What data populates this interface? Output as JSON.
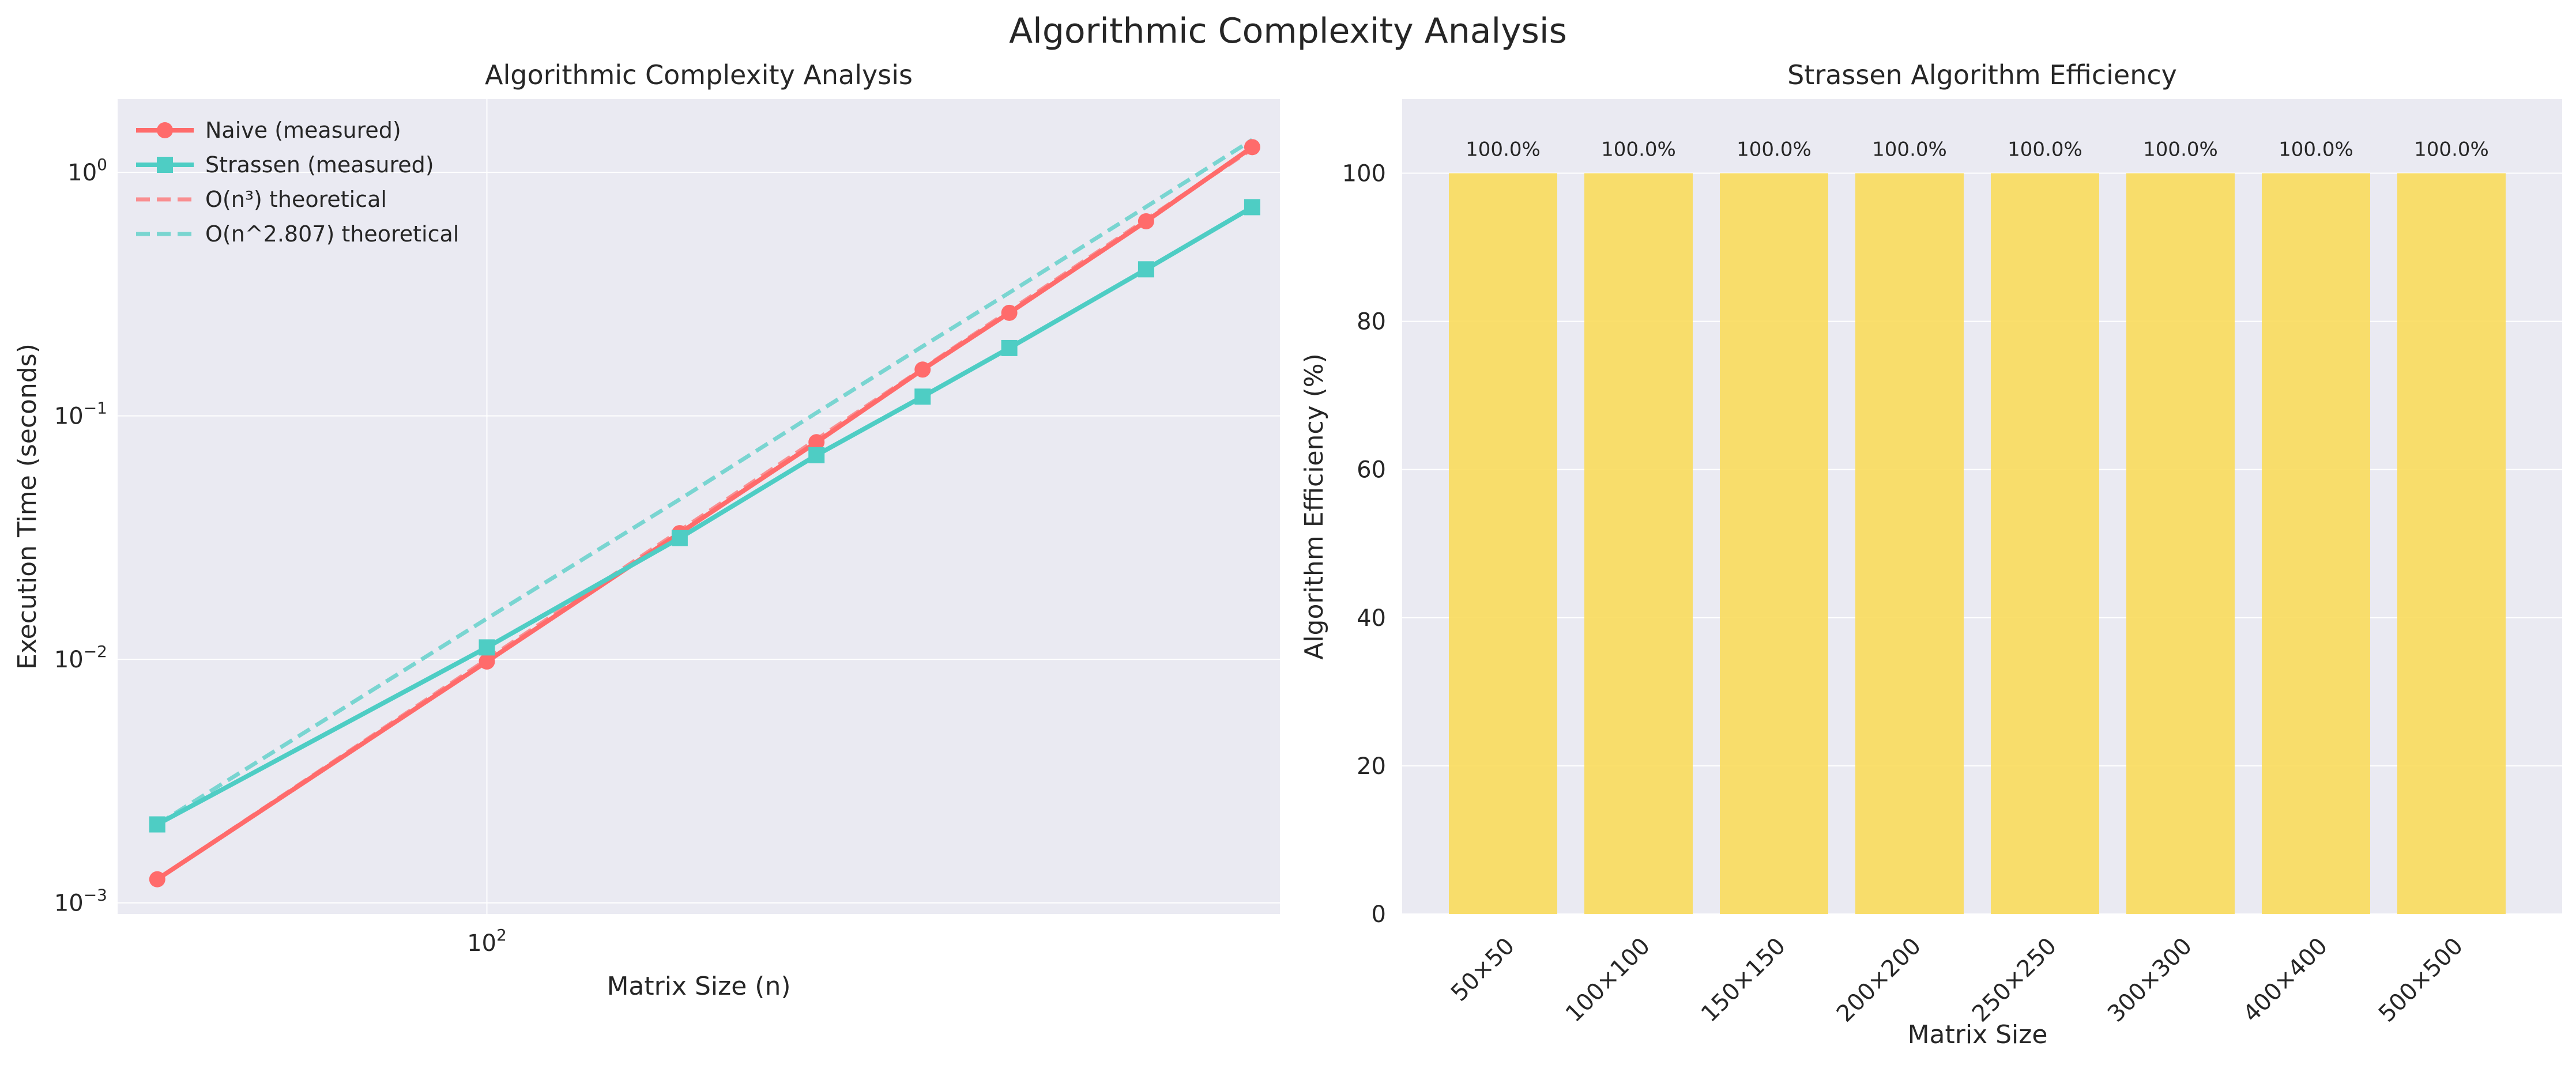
{
  "suptitle": "Algorithmic Complexity Analysis",
  "chart_data": [
    {
      "type": "line",
      "title": "Algorithmic Complexity Analysis",
      "xlabel": "Matrix Size (n)",
      "ylabel": "Execution Time (seconds)",
      "xscale": "log",
      "yscale": "log",
      "xlim": [
        46,
        530
      ],
      "ylim": [
        0.0009,
        2.0
      ],
      "x_ticks": [
        {
          "value": 100,
          "base": "10",
          "exp": "2"
        }
      ],
      "y_ticks": [
        {
          "value": 0.001,
          "base": "10",
          "exp": "−3"
        },
        {
          "value": 0.01,
          "base": "10",
          "exp": "−2"
        },
        {
          "value": 0.1,
          "base": "10",
          "exp": "−1"
        },
        {
          "value": 1,
          "base": "10",
          "exp": "0"
        }
      ],
      "grid": true,
      "legend_position": "upper-left",
      "series": [
        {
          "name": "Naive (measured)",
          "color": "#ff6b6b",
          "style": "solid",
          "marker": "circle",
          "x": [
            50,
            100,
            150,
            200,
            250,
            300,
            400,
            500
          ],
          "y": [
            0.00125,
            0.0098,
            0.033,
            0.078,
            0.155,
            0.265,
            0.63,
            1.27
          ]
        },
        {
          "name": "Strassen (measured)",
          "color": "#4ecdc4",
          "style": "solid",
          "marker": "square",
          "x": [
            50,
            100,
            150,
            200,
            250,
            300,
            400,
            500
          ],
          "y": [
            0.0021,
            0.0112,
            0.0315,
            0.069,
            0.12,
            0.19,
            0.4,
            0.72
          ]
        },
        {
          "name": "O(n³) theoretical",
          "color": "#ff6b6b",
          "style": "dashed",
          "marker": "none",
          "x": [
            50,
            100,
            150,
            200,
            250,
            300,
            400,
            500
          ],
          "y": [
            0.00125,
            0.01,
            0.03375,
            0.08,
            0.15625,
            0.27,
            0.64,
            1.25
          ]
        },
        {
          "name": "O(n^2.807) theoretical",
          "color": "#4ecdc4",
          "style": "dashed",
          "marker": "none",
          "x": [
            50,
            100,
            150,
            200,
            250,
            300,
            400,
            500
          ],
          "y": [
            0.0021,
            0.01471,
            0.04542,
            0.103,
            0.193,
            0.3206,
            0.7221,
            1.3607
          ]
        }
      ]
    },
    {
      "type": "bar",
      "title": "Strassen Algorithm Efficiency",
      "xlabel": "Matrix Size",
      "ylabel": "Algorithm Efficiency (%)",
      "ylim": [
        0,
        110
      ],
      "y_ticks": [
        0,
        20,
        40,
        60,
        80,
        100
      ],
      "grid": true,
      "bar_color": "#f9dc5c",
      "categories": [
        "50×50",
        "100×100",
        "150×150",
        "200×200",
        "250×250",
        "300×300",
        "400×400",
        "500×500"
      ],
      "values": [
        100,
        100,
        100,
        100,
        100,
        100,
        100,
        100
      ],
      "data_labels": [
        "100.0%",
        "100.0%",
        "100.0%",
        "100.0%",
        "100.0%",
        "100.0%",
        "100.0%",
        "100.0%"
      ]
    }
  ]
}
